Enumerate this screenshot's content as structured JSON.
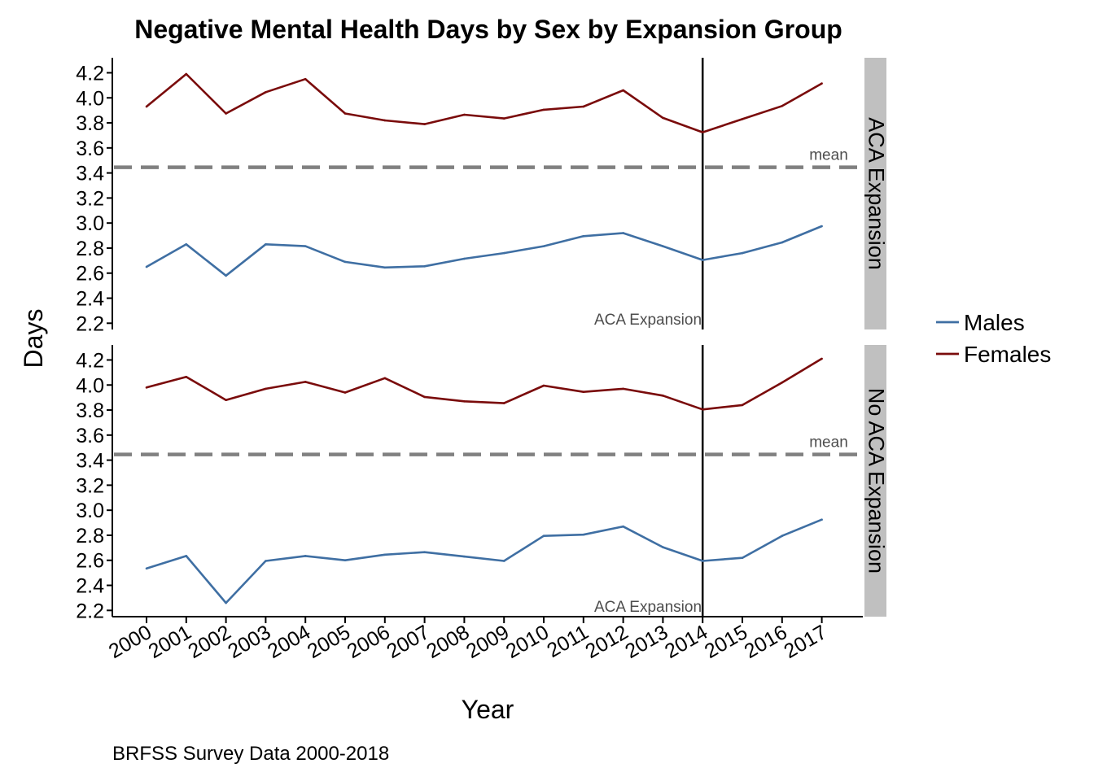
{
  "chart_data": {
    "type": "line",
    "title": "Negative Mental Health Days by Sex by Expansion Group",
    "xlabel": "Year",
    "ylabel": "Days",
    "caption": "BRFSS Survey Data 2000-2018",
    "x": [
      "2000",
      "2001",
      "2002",
      "2003",
      "2004",
      "2005",
      "2006",
      "2007",
      "2008",
      "2009",
      "2010",
      "2011",
      "2012",
      "2013",
      "2014",
      "2015",
      "2016",
      "2017"
    ],
    "ylim": [
      2.15,
      4.32
    ],
    "yticks": [
      "2.2",
      "2.4",
      "2.6",
      "2.8",
      "3.0",
      "3.2",
      "3.4",
      "3.6",
      "3.8",
      "4.0",
      "4.2"
    ],
    "mean_value": 3.445,
    "mean_label": "mean",
    "vline_x": "2014",
    "vline_label": "ACA Expansion",
    "legend": [
      {
        "name": "Males",
        "color": "#3f6fa3"
      },
      {
        "name": "Females",
        "color": "#7a0b0b"
      }
    ],
    "panels": [
      {
        "strip": "ACA Expansion",
        "series": [
          {
            "name": "Males",
            "values": [
              2.65,
              2.83,
              2.58,
              2.83,
              2.815,
              2.69,
              2.645,
              2.655,
              2.715,
              2.76,
              2.815,
              2.895,
              2.92,
              2.815,
              2.705,
              2.76,
              2.845,
              2.975
            ]
          },
          {
            "name": "Females",
            "values": [
              3.93,
              4.19,
              3.875,
              4.045,
              4.15,
              3.875,
              3.82,
              3.79,
              3.865,
              3.835,
              3.905,
              3.93,
              4.06,
              3.84,
              3.725,
              3.83,
              3.935,
              4.115
            ]
          }
        ]
      },
      {
        "strip": "No ACA Expansion",
        "series": [
          {
            "name": "Males",
            "values": [
              2.535,
              2.635,
              2.26,
              2.595,
              2.635,
              2.6,
              2.645,
              2.665,
              2.63,
              2.595,
              2.795,
              2.805,
              2.87,
              2.705,
              2.595,
              2.62,
              2.795,
              2.925
            ]
          },
          {
            "name": "Females",
            "values": [
              3.98,
              4.065,
              3.88,
              3.97,
              4.025,
              3.94,
              4.055,
              3.905,
              3.87,
              3.855,
              3.995,
              3.945,
              3.97,
              3.915,
              3.805,
              3.84,
              4.02,
              4.21
            ]
          }
        ]
      }
    ],
    "colors": {
      "mean_line": "#808080",
      "vline": "#000000",
      "strip_bg": "#c0c0c0"
    }
  }
}
